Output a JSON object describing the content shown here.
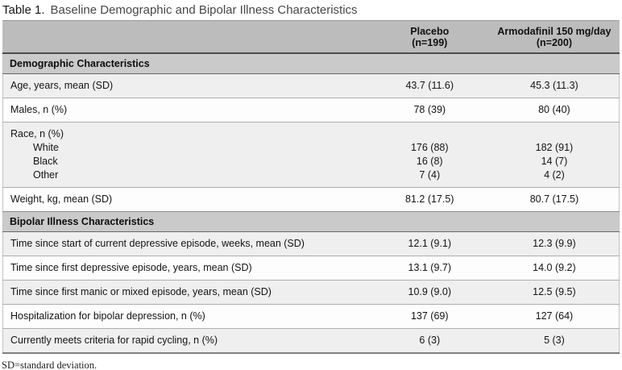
{
  "title": {
    "label": "Table 1.",
    "text": "Baseline Demographic and Bipolar Illness Characteristics"
  },
  "header": {
    "columns": [
      {
        "name": "Placebo",
        "n": "(n=199)"
      },
      {
        "name": "Armodafinil 150 mg/day",
        "n": "(n=200)"
      }
    ]
  },
  "table": {
    "sections": [
      {
        "title": "Demographic Characteristics",
        "rows": [
          {
            "label": "Age, years, mean (SD)",
            "placebo": "43.7 (11.6)",
            "armodafinil": "45.3 (11.3)"
          },
          {
            "label": "Males, n (%)",
            "placebo": "78 (39)",
            "armodafinil": "80 (40)"
          },
          {
            "label": "Race, n (%)",
            "sub": [
              {
                "label": "White",
                "placebo": "176 (88)",
                "armodafinil": "182 (91)"
              },
              {
                "label": "Black",
                "placebo": "16 (8)",
                "armodafinil": "14 (7)"
              },
              {
                "label": "Other",
                "placebo": "7 (4)",
                "armodafinil": "4 (2)"
              }
            ]
          },
          {
            "label": "Weight, kg, mean (SD)",
            "placebo": "81.2 (17.5)",
            "armodafinil": "80.7 (17.5)"
          }
        ]
      },
      {
        "title": "Bipolar Illness Characteristics",
        "rows": [
          {
            "label": "Time since start of current depressive episode, weeks, mean (SD)",
            "placebo": "12.1 (9.1)",
            "armodafinil": "12.3 (9.9)"
          },
          {
            "label": "Time since first depressive episode, years, mean (SD)",
            "placebo": "13.1 (9.7)",
            "armodafinil": "14.0 (9.2)"
          },
          {
            "label": "Time since first manic or mixed episode, years, mean (SD)",
            "placebo": "10.9 (9.0)",
            "armodafinil": "12.5 (9.5)"
          },
          {
            "label": "Hospitalization for bipolar depression, n (%)",
            "placebo": "137 (69)",
            "armodafinil": "127 (64)"
          },
          {
            "label": "Currently meets criteria for rapid cycling, n (%)",
            "placebo": "6 (3)",
            "armodafinil": "5 (3)"
          }
        ]
      }
    ]
  },
  "footnote": "SD=standard deviation.",
  "colors": {
    "header_band": "#bcbcbc",
    "section_band": "#cacaca",
    "row_shade": "#efefef",
    "row_plain": "#fdfdfd",
    "header_rule": "#4d4d4d"
  }
}
